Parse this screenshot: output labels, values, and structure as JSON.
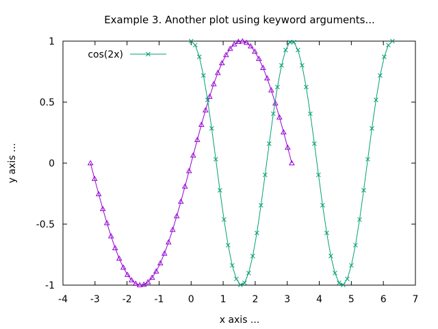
{
  "chart_data": {
    "type": "line",
    "title": "Example 3. Another plot using keyword arguments...",
    "xlabel": "x axis ...",
    "ylabel": "y axis ...",
    "xlim": [
      -4,
      7
    ],
    "ylim": [
      -1,
      1
    ],
    "xticks": [
      "-4",
      "-3",
      "-2",
      "-1",
      "0",
      "1",
      "2",
      "3",
      "4",
      "5",
      "6",
      "7"
    ],
    "yticks": [
      "1",
      "0.5",
      "0",
      "-0.5",
      "-1"
    ],
    "grid": false,
    "legend_position": "top-left",
    "series": [
      {
        "function": "sin(x)",
        "x_range": [
          -3.14159,
          3.14159
        ],
        "points": 50,
        "color": "#9400d3",
        "marker": "triangle-open"
      },
      {
        "name": "cos(2x)",
        "function": "cos(2x)",
        "x_range": [
          0,
          6.28318
        ],
        "points": 50,
        "color": "#009e73",
        "marker": "x"
      }
    ]
  }
}
